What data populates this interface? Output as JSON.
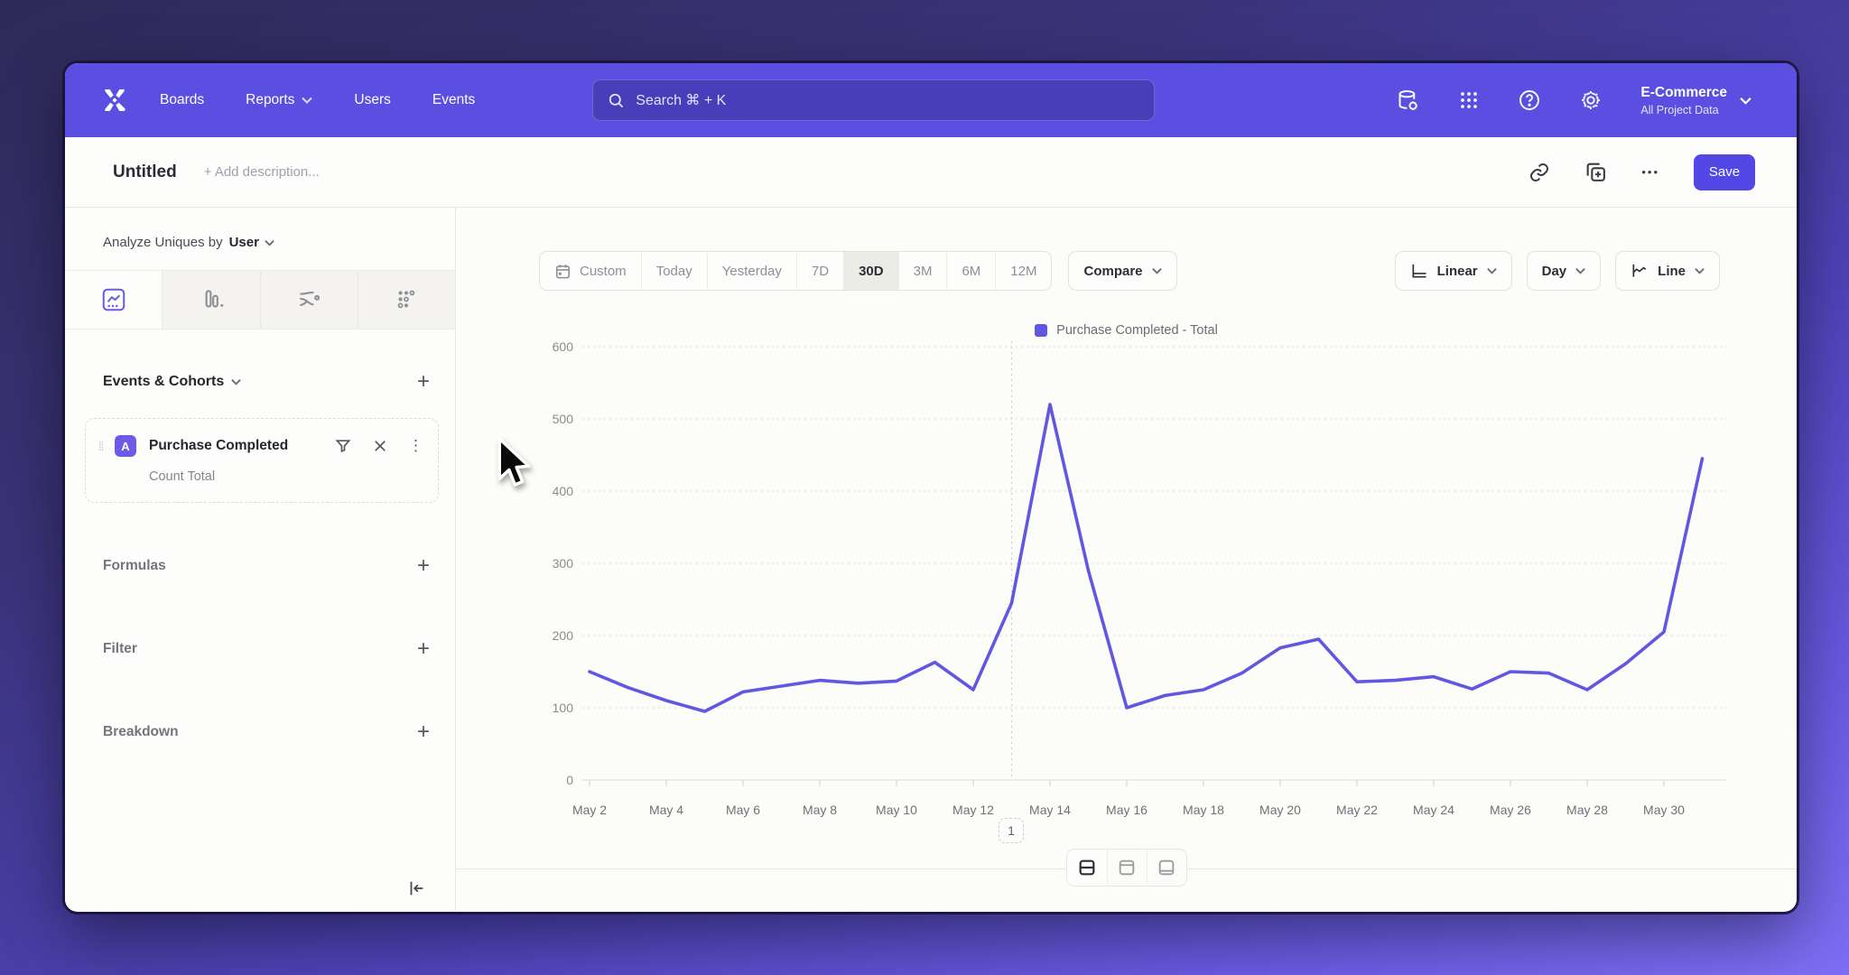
{
  "nav": {
    "items": [
      "Boards",
      "Reports",
      "Users",
      "Events"
    ],
    "search_text": "Search  ⌘ + K",
    "project": {
      "name": "E-Commerce",
      "subtitle": "All Project Data"
    }
  },
  "header": {
    "title": "Untitled",
    "description_placeholder": "+ Add description...",
    "save_label": "Save"
  },
  "icons": {
    "plus": "+",
    "ellipsis": "•••",
    "kebab": "⋮",
    "drag": "⁞⁞"
  },
  "sidebar": {
    "analyze_label": "Analyze Uniques by",
    "analyze_value": "User",
    "events_header": "Events & Cohorts",
    "event_card": {
      "badge": "A",
      "name": "Purchase Completed",
      "metric": "Count Total"
    },
    "formulas_label": "Formulas",
    "filter_label": "Filter",
    "breakdown_label": "Breakdown"
  },
  "toolbar": {
    "ranges": [
      "Custom",
      "Today",
      "Yesterday",
      "7D",
      "30D",
      "3M",
      "6M",
      "12M"
    ],
    "selected_range": "30D",
    "compare_label": "Compare",
    "scale_label": "Linear",
    "interval_label": "Day",
    "chart_type_label": "Line"
  },
  "chart_data": {
    "type": "line",
    "title": "",
    "legend": "Purchase Completed - Total",
    "legend_position": "top-center",
    "grid": "horizontal-dotted",
    "line_color": "#6257e0",
    "ylim": [
      0,
      600
    ],
    "yticks": [
      0,
      100,
      200,
      300,
      400,
      500,
      600
    ],
    "x": [
      "May 2",
      "May 3",
      "May 4",
      "May 5",
      "May 6",
      "May 7",
      "May 8",
      "May 9",
      "May 10",
      "May 11",
      "May 12",
      "May 13",
      "May 14",
      "May 15",
      "May 16",
      "May 17",
      "May 18",
      "May 19",
      "May 20",
      "May 21",
      "May 22",
      "May 23",
      "May 24",
      "May 25",
      "May 26",
      "May 27",
      "May 28",
      "May 29",
      "May 30",
      "May 31"
    ],
    "x_tick_every": 2,
    "series": [
      {
        "name": "Purchase Completed - Total",
        "values": [
          150,
          128,
          110,
          95,
          122,
          130,
          138,
          134,
          137,
          163,
          125,
          245,
          520,
          290,
          100,
          117,
          125,
          148,
          183,
          195,
          136,
          138,
          143,
          126,
          150,
          148,
          125,
          161,
          205,
          445
        ]
      }
    ],
    "annotation": {
      "label": "1",
      "x": "May 13"
    }
  }
}
